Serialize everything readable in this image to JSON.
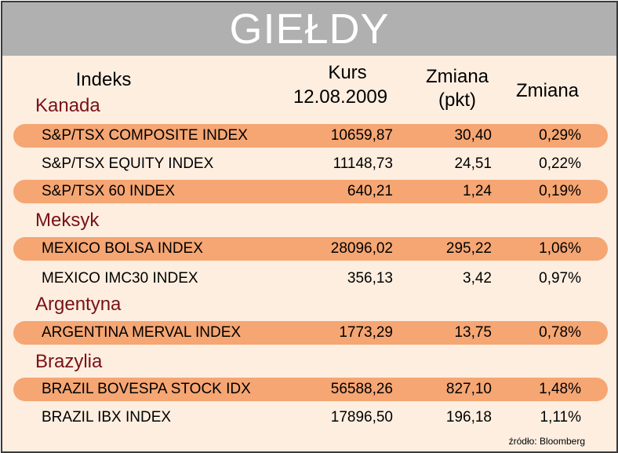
{
  "title": "GIEŁDY",
  "headers": {
    "index": "Indeks",
    "kurs_line1": "Kurs",
    "kurs_line2": "12.08.2009",
    "change_pts_line1": "Zmiana",
    "change_pts_line2": "(pkt)",
    "change_pct": "Zmiana"
  },
  "groups": [
    {
      "country": "Kanada",
      "rows": [
        {
          "name": "S&P/TSX COMPOSITE INDEX",
          "kurs": "10659,87",
          "pkt": "30,40",
          "pct": "0,29%",
          "highlight": true
        },
        {
          "name": "S&P/TSX EQUITY INDEX",
          "kurs": "11148,73",
          "pkt": "24,51",
          "pct": "0,22%",
          "highlight": false
        },
        {
          "name": "S&P/TSX 60 INDEX",
          "kurs": "640,21",
          "pkt": "1,24",
          "pct": "0,19%",
          "highlight": true
        }
      ]
    },
    {
      "country": "Meksyk",
      "rows": [
        {
          "name": "MEXICO BOLSA INDEX",
          "kurs": "28096,02",
          "pkt": "295,22",
          "pct": "1,06%",
          "highlight": true
        },
        {
          "name": "MEXICO IMC30 INDEX",
          "kurs": "356,13",
          "pkt": "3,42",
          "pct": "0,97%",
          "highlight": false
        }
      ]
    },
    {
      "country": "Argentyna",
      "rows": [
        {
          "name": "ARGENTINA MERVAL INDEX",
          "kurs": "1773,29",
          "pkt": "13,75",
          "pct": "0,78%",
          "highlight": true
        }
      ]
    },
    {
      "country": "Brazylia",
      "rows": [
        {
          "name": "BRAZIL BOVESPA STOCK IDX",
          "kurs": "56588,26",
          "pkt": "827,10",
          "pct": "1,48%",
          "highlight": true
        },
        {
          "name": "BRAZIL IBX INDEX",
          "kurs": "17896,50",
          "pkt": "196,18",
          "pct": "1,11%",
          "highlight": false
        }
      ]
    }
  ],
  "source": "źródło: Bloomberg",
  "colors": {
    "background": "#fdeee0",
    "title_bar": "#b0b0b0",
    "row_highlight": "#f5a673",
    "country_text": "#7a1116"
  }
}
